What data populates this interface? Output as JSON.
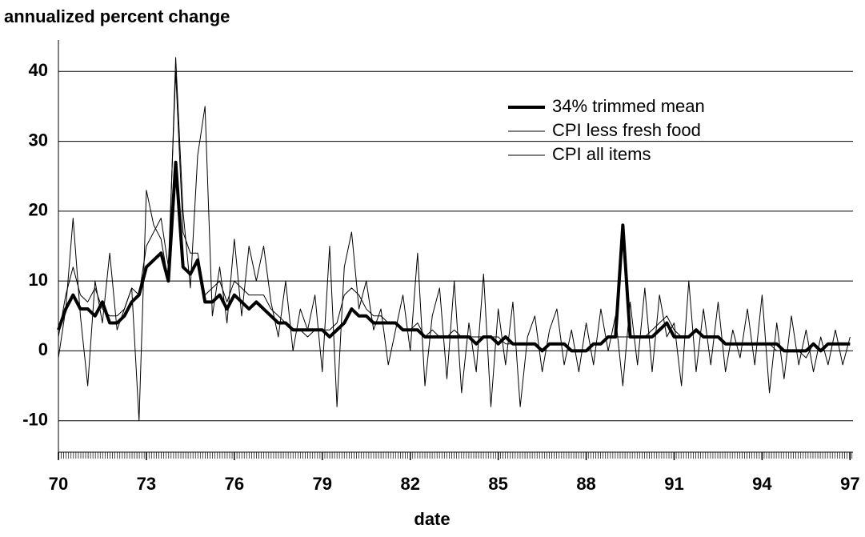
{
  "chart_data": {
    "type": "line",
    "title": "annualized percent change",
    "x_label": "date",
    "xlim": [
      70,
      97.1
    ],
    "xticks": [
      70,
      73,
      76,
      79,
      82,
      85,
      88,
      91,
      94,
      97
    ],
    "ylim": [
      -14.5,
      44.5
    ],
    "yticks": [
      -10,
      0,
      10,
      20,
      30,
      40
    ],
    "grid": true,
    "legend": "upper right",
    "x": [
      70,
      70.25,
      70.5,
      70.75,
      71,
      71.25,
      71.5,
      71.75,
      72,
      72.25,
      72.5,
      72.75,
      73,
      73.25,
      73.5,
      73.75,
      74,
      74.25,
      74.5,
      74.75,
      75,
      75.25,
      75.5,
      75.75,
      76,
      76.25,
      76.5,
      76.75,
      77,
      77.25,
      77.5,
      77.75,
      78,
      78.25,
      78.5,
      78.75,
      79,
      79.25,
      79.5,
      79.75,
      80,
      80.25,
      80.5,
      80.75,
      81,
      81.25,
      81.5,
      81.75,
      82,
      82.25,
      82.5,
      82.75,
      83,
      83.25,
      83.5,
      83.75,
      84,
      84.25,
      84.5,
      84.75,
      85,
      85.25,
      85.5,
      85.75,
      86,
      86.25,
      86.5,
      86.75,
      87,
      87.25,
      87.5,
      87.75,
      88,
      88.25,
      88.5,
      88.75,
      89,
      89.25,
      89.5,
      89.75,
      90,
      90.25,
      90.5,
      90.75,
      91,
      91.25,
      91.5,
      91.75,
      92,
      92.25,
      92.5,
      92.75,
      93,
      93.25,
      93.5,
      93.75,
      94,
      94.25,
      94.5,
      94.75,
      95,
      95.25,
      95.5,
      95.75,
      96,
      96.25,
      96.5,
      96.75,
      97
    ],
    "series": [
      {
        "name": "34% trimmed mean",
        "color": "#000000",
        "width": 4,
        "values": [
          3,
          6,
          8,
          6,
          6,
          5,
          7,
          4,
          4,
          5,
          7,
          8,
          12,
          13,
          14,
          10,
          27,
          12,
          11,
          13,
          7,
          7,
          8,
          6,
          8,
          7,
          6,
          7,
          6,
          5,
          4,
          4,
          3,
          3,
          3,
          3,
          3,
          2,
          3,
          4,
          6,
          5,
          5,
          4,
          4,
          4,
          4,
          3,
          3,
          3,
          2,
          2,
          2,
          2,
          2,
          2,
          2,
          1,
          2,
          2,
          1,
          2,
          1,
          1,
          1,
          1,
          0,
          1,
          1,
          1,
          0,
          0,
          0,
          1,
          1,
          2,
          2,
          18,
          2,
          2,
          2,
          2,
          3,
          4,
          2,
          2,
          2,
          3,
          2,
          2,
          2,
          1,
          1,
          1,
          1,
          1,
          1,
          1,
          1,
          0,
          0,
          0,
          0,
          1,
          0,
          1,
          1,
          1,
          1
        ]
      },
      {
        "name": "CPI less fresh food",
        "color": "#000000",
        "width": 1,
        "values": [
          2,
          8,
          12,
          8,
          7,
          9,
          6,
          5,
          5,
          6,
          9,
          8,
          15,
          17,
          19,
          12,
          40,
          17,
          14,
          14,
          8,
          9,
          10,
          7,
          10,
          9,
          8,
          8,
          8,
          6,
          5,
          4,
          3,
          3,
          2,
          3,
          3,
          3,
          4,
          8,
          9,
          8,
          6,
          5,
          5,
          4,
          4,
          3,
          3,
          4,
          2,
          3,
          2,
          2,
          3,
          2,
          2,
          2,
          2,
          2,
          2,
          1,
          1,
          1,
          1,
          1,
          0,
          1,
          1,
          1,
          0,
          0,
          0,
          1,
          1,
          2,
          2,
          2,
          2,
          2,
          2,
          3,
          4,
          5,
          3,
          2,
          2,
          3,
          2,
          2,
          2,
          1,
          1,
          1,
          1,
          1,
          1,
          1,
          0,
          0,
          0,
          0,
          -1,
          1,
          0,
          1,
          1,
          1,
          1
        ]
      },
      {
        "name": "CPI all items",
        "color": "#000000",
        "width": 1,
        "values": [
          -1,
          6,
          19,
          5,
          -5,
          10,
          4,
          14,
          3,
          6,
          9,
          -10,
          23,
          18,
          16,
          10,
          42,
          20,
          9,
          28,
          35,
          5,
          12,
          4,
          16,
          5,
          15,
          10,
          15,
          7,
          2,
          10,
          0,
          6,
          3,
          8,
          -3,
          15,
          -8,
          12,
          17,
          6,
          10,
          3,
          6,
          -2,
          3,
          8,
          0,
          14,
          -5,
          5,
          9,
          -4,
          10,
          -6,
          4,
          -3,
          11,
          -8,
          6,
          -2,
          7,
          -8,
          2,
          5,
          -3,
          3,
          6,
          -2,
          3,
          -3,
          4,
          -2,
          6,
          0,
          5,
          -5,
          7,
          -2,
          9,
          -3,
          8,
          2,
          4,
          -5,
          10,
          -3,
          6,
          -2,
          7,
          -3,
          3,
          -1,
          6,
          -2,
          8,
          -6,
          4,
          -4,
          5,
          -2,
          3,
          -3,
          2,
          -2,
          3,
          -2,
          2
        ]
      }
    ]
  }
}
